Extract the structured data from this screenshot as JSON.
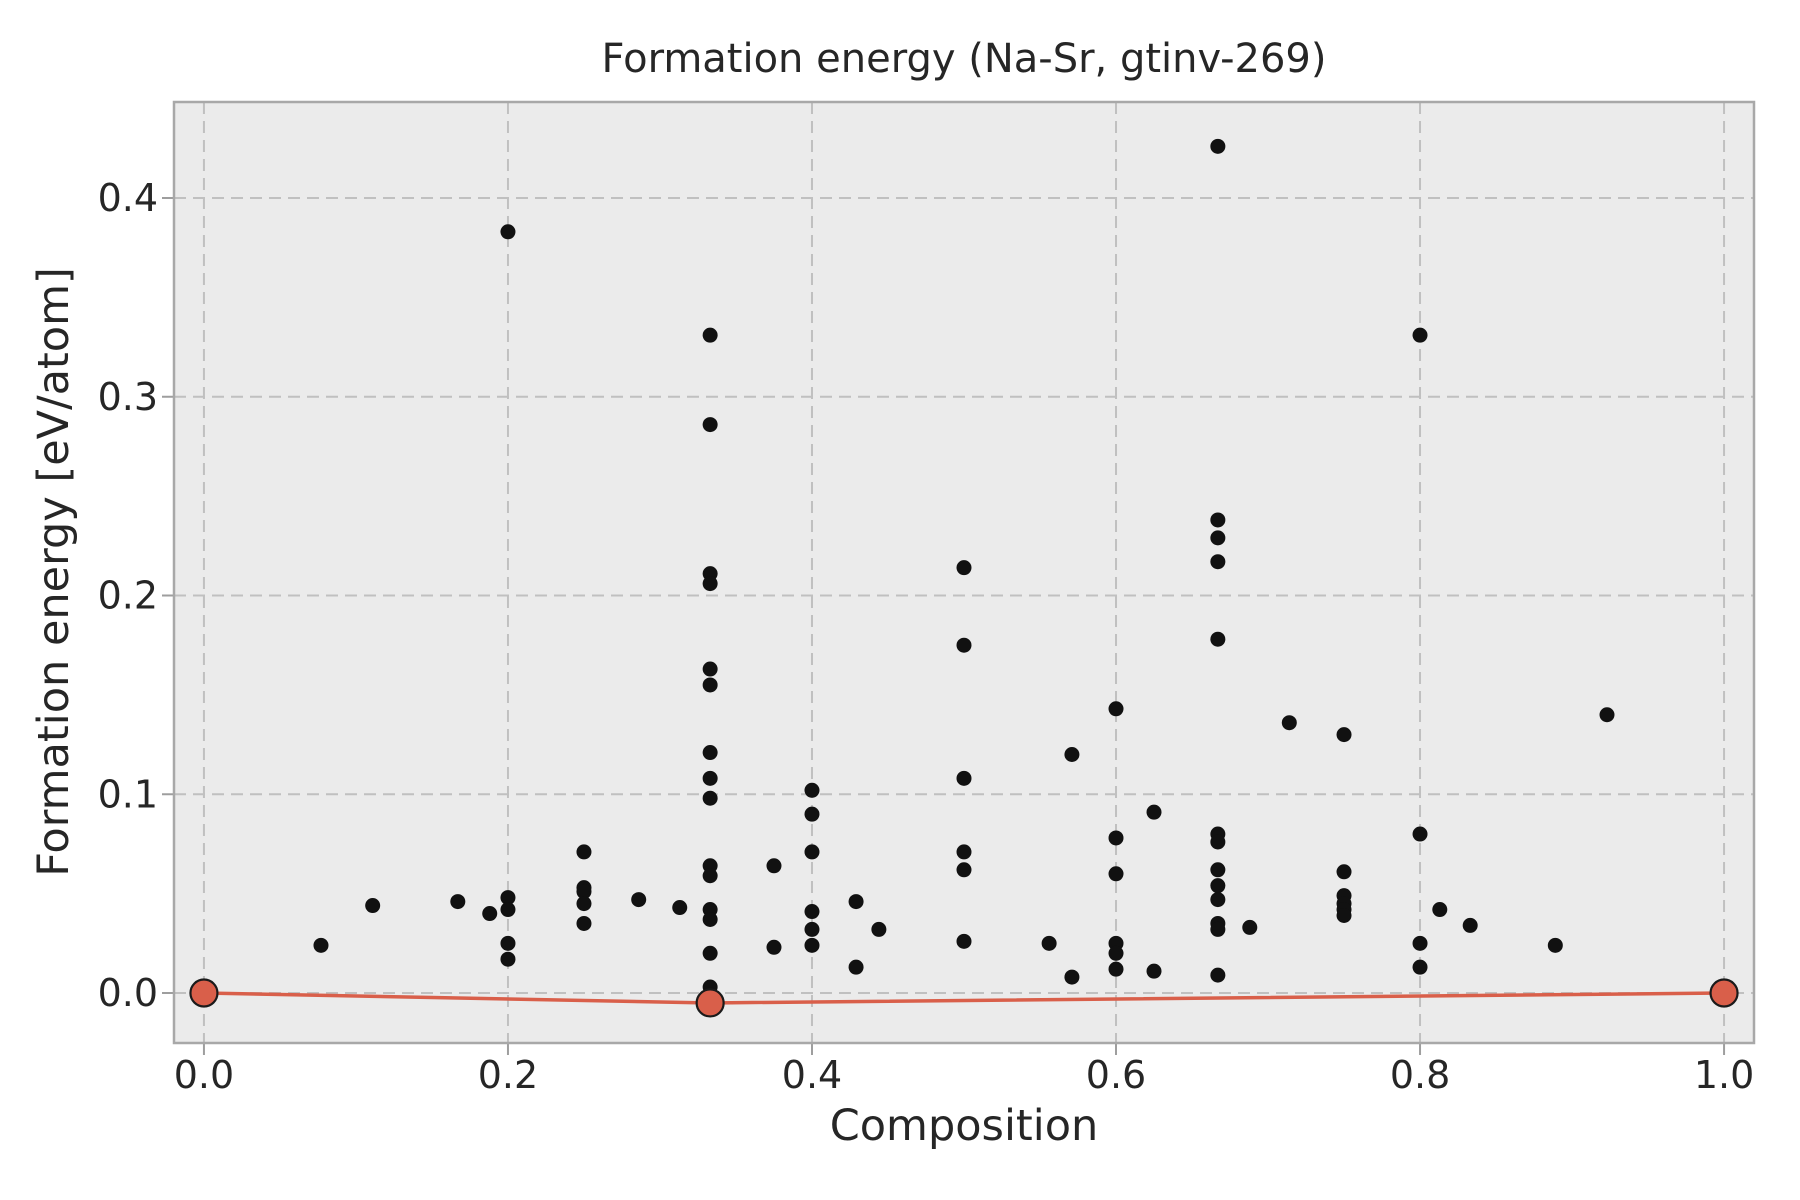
{
  "chart_data": {
    "type": "scatter",
    "title": "Formation energy (Na-Sr, gtinv-269)",
    "xlabel": "Composition",
    "ylabel": "Formation energy [eV/atom]",
    "xlim": [
      -0.0197,
      1.0197
    ],
    "ylim": [
      -0.02515,
      0.4483
    ],
    "xticks": [
      "0.0",
      "0.2",
      "0.4",
      "0.6",
      "0.8",
      "1.0"
    ],
    "xtick_values": [
      0.0,
      0.2,
      0.4,
      0.6,
      0.8,
      1.0
    ],
    "yticks": [
      "0.0",
      "0.1",
      "0.2",
      "0.3",
      "0.4"
    ],
    "ytick_values": [
      0.0,
      0.1,
      0.2,
      0.3,
      0.4
    ],
    "grid": true,
    "grid_style": "dashed",
    "legend": "none",
    "colors": {
      "figure_background": "#ffffff",
      "plot_background": "#ebebeb",
      "grid": "#c0c0c0",
      "spine": "#a8a8a8",
      "tick": "#9e9e9e",
      "text": "#262626",
      "scatter": "#111111",
      "hull": "#d95f4a",
      "hull_marker_edge": "#1a1a1a"
    },
    "series": [
      {
        "name": "structure-energies",
        "type": "scatter",
        "color": "#111111",
        "marker_radius": 7.5,
        "points": [
          [
            0.077,
            0.024
          ],
          [
            0.111,
            0.044
          ],
          [
            0.167,
            0.046
          ],
          [
            0.188,
            0.04
          ],
          [
            0.2,
            0.383
          ],
          [
            0.2,
            0.048
          ],
          [
            0.2,
            0.042
          ],
          [
            0.2,
            0.025
          ],
          [
            0.2,
            0.017
          ],
          [
            0.25,
            0.071
          ],
          [
            0.25,
            0.053
          ],
          [
            0.25,
            0.051
          ],
          [
            0.25,
            0.045
          ],
          [
            0.25,
            0.035
          ],
          [
            0.286,
            0.047
          ],
          [
            0.313,
            0.043
          ],
          [
            0.333,
            0.331
          ],
          [
            0.333,
            0.286
          ],
          [
            0.333,
            0.211
          ],
          [
            0.333,
            0.206
          ],
          [
            0.333,
            0.163
          ],
          [
            0.333,
            0.155
          ],
          [
            0.333,
            0.121
          ],
          [
            0.333,
            0.108
          ],
          [
            0.333,
            0.098
          ],
          [
            0.333,
            0.064
          ],
          [
            0.333,
            0.059
          ],
          [
            0.333,
            0.042
          ],
          [
            0.333,
            0.037
          ],
          [
            0.333,
            0.02
          ],
          [
            0.333,
            0.003
          ],
          [
            0.375,
            0.064
          ],
          [
            0.375,
            0.023
          ],
          [
            0.4,
            0.102
          ],
          [
            0.4,
            0.09
          ],
          [
            0.4,
            0.071
          ],
          [
            0.4,
            0.041
          ],
          [
            0.4,
            0.032
          ],
          [
            0.4,
            0.024
          ],
          [
            0.429,
            0.046
          ],
          [
            0.429,
            0.013
          ],
          [
            0.444,
            0.032
          ],
          [
            0.5,
            0.214
          ],
          [
            0.5,
            0.175
          ],
          [
            0.5,
            0.108
          ],
          [
            0.5,
            0.071
          ],
          [
            0.5,
            0.062
          ],
          [
            0.5,
            0.026
          ],
          [
            0.556,
            0.025
          ],
          [
            0.571,
            0.12
          ],
          [
            0.571,
            0.008
          ],
          [
            0.6,
            0.143
          ],
          [
            0.6,
            0.078
          ],
          [
            0.6,
            0.06
          ],
          [
            0.6,
            0.025
          ],
          [
            0.6,
            0.02
          ],
          [
            0.6,
            0.012
          ],
          [
            0.625,
            0.091
          ],
          [
            0.625,
            0.011
          ],
          [
            0.667,
            0.426
          ],
          [
            0.667,
            0.238
          ],
          [
            0.667,
            0.229
          ],
          [
            0.667,
            0.217
          ],
          [
            0.667,
            0.178
          ],
          [
            0.667,
            0.08
          ],
          [
            0.667,
            0.076
          ],
          [
            0.667,
            0.062
          ],
          [
            0.667,
            0.054
          ],
          [
            0.667,
            0.047
          ],
          [
            0.667,
            0.035
          ],
          [
            0.667,
            0.032
          ],
          [
            0.667,
            0.009
          ],
          [
            0.688,
            0.033
          ],
          [
            0.714,
            0.136
          ],
          [
            0.75,
            0.13
          ],
          [
            0.75,
            0.061
          ],
          [
            0.75,
            0.049
          ],
          [
            0.75,
            0.045
          ],
          [
            0.75,
            0.042
          ],
          [
            0.75,
            0.039
          ],
          [
            0.8,
            0.331
          ],
          [
            0.8,
            0.08
          ],
          [
            0.8,
            0.025
          ],
          [
            0.8,
            0.013
          ],
          [
            0.813,
            0.042
          ],
          [
            0.833,
            0.034
          ],
          [
            0.889,
            0.024
          ],
          [
            0.923,
            0.14
          ]
        ]
      },
      {
        "name": "convex-hull",
        "type": "line",
        "color": "#d95f4a",
        "line_width": 3.5,
        "marker_radius": 13.5,
        "points": [
          [
            0.0,
            0.0
          ],
          [
            0.333,
            -0.005
          ],
          [
            1.0,
            0.0
          ]
        ]
      }
    ]
  }
}
